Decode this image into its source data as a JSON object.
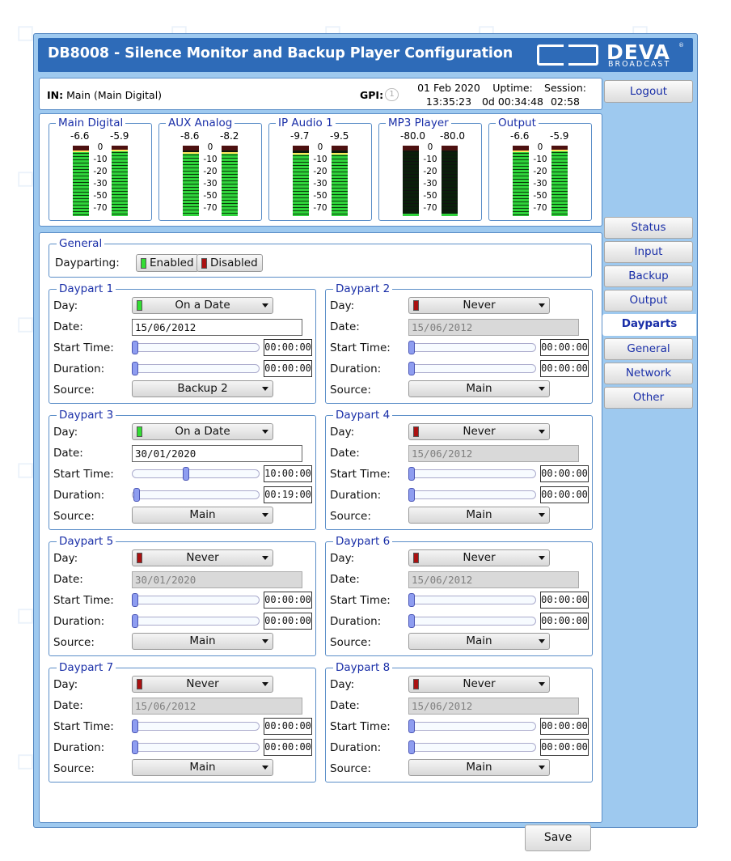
{
  "header": {
    "title": "DB8008 - Silence Monitor and Backup Player Configuration",
    "logo_text": "DEVA",
    "logo_sub": "BROADCAST",
    "logo_reg": "®"
  },
  "info": {
    "in_label": "IN:",
    "in_value": "Main (Main Digital)",
    "gpi_label": "GPI:",
    "gpi_value": "1",
    "date": "01 Feb 2020",
    "time": "13:35:23",
    "uptime_label": "Uptime:",
    "uptime_value": "0d 00:34:48",
    "session_label": "Session:",
    "session_value": "02:58"
  },
  "nav": {
    "logout": "Logout",
    "items": [
      "Status",
      "Input",
      "Backup",
      "Output",
      "Dayparts",
      "General",
      "Network",
      "Other"
    ],
    "active": "Dayparts"
  },
  "meters": {
    "scale": [
      "0",
      "-10",
      "-20",
      "-30",
      "-50",
      "-70"
    ],
    "items": [
      {
        "name": "Main Digital",
        "left": "-6.6",
        "right": "-5.9",
        "left_level": 0.93,
        "right_level": 0.94
      },
      {
        "name": "AUX Analog",
        "left": "-8.6",
        "right": "-8.2",
        "left_level": 0.91,
        "right_level": 0.91
      },
      {
        "name": "IP Audio 1",
        "left": "-9.7",
        "right": "-9.5",
        "left_level": 0.9,
        "right_level": 0.9
      },
      {
        "name": "MP3 Player",
        "left": "-80.0",
        "right": "-80.0",
        "left_level": 0.03,
        "right_level": 0.03
      },
      {
        "name": "Output",
        "left": "-6.6",
        "right": "-5.9",
        "left_level": 0.93,
        "right_level": 0.94
      }
    ]
  },
  "general": {
    "legend": "General",
    "dayparting_label": "Dayparting:",
    "enabled_label": "Enabled",
    "disabled_label": "Disabled",
    "enabled_color": "#33dd33",
    "disabled_color": "#aa1111"
  },
  "labels": {
    "day": "Day:",
    "date": "Date:",
    "start": "Start Time:",
    "duration": "Duration:",
    "source": "Source:"
  },
  "dayparts": [
    {
      "legend": "Daypart 1",
      "day": "On a Date",
      "day_color": "#33dd33",
      "date": "15/06/2012",
      "date_enabled": true,
      "start": "00:00:00",
      "start_level": 0.0,
      "duration": "00:00:00",
      "duration_level": 0.0,
      "source": "Backup 2"
    },
    {
      "legend": "Daypart 2",
      "day": "Never",
      "day_color": "#aa1111",
      "date": "15/06/2012",
      "date_enabled": false,
      "start": "00:00:00",
      "start_level": 0.0,
      "duration": "00:00:00",
      "duration_level": 0.0,
      "source": "Main"
    },
    {
      "legend": "Daypart 3",
      "day": "On a Date",
      "day_color": "#33dd33",
      "date": "30/01/2020",
      "date_enabled": true,
      "start": "10:00:00",
      "start_level": 0.42,
      "duration": "00:19:00",
      "duration_level": 0.01,
      "source": "Main"
    },
    {
      "legend": "Daypart 4",
      "day": "Never",
      "day_color": "#aa1111",
      "date": "15/06/2012",
      "date_enabled": false,
      "start": "00:00:00",
      "start_level": 0.0,
      "duration": "00:00:00",
      "duration_level": 0.0,
      "source": "Main"
    },
    {
      "legend": "Daypart 5",
      "day": "Never",
      "day_color": "#aa1111",
      "date": "30/01/2020",
      "date_enabled": false,
      "start": "00:00:00",
      "start_level": 0.0,
      "duration": "00:00:00",
      "duration_level": 0.0,
      "source": "Main"
    },
    {
      "legend": "Daypart 6",
      "day": "Never",
      "day_color": "#aa1111",
      "date": "15/06/2012",
      "date_enabled": false,
      "start": "00:00:00",
      "start_level": 0.0,
      "duration": "00:00:00",
      "duration_level": 0.0,
      "source": "Main"
    },
    {
      "legend": "Daypart 7",
      "day": "Never",
      "day_color": "#aa1111",
      "date": "15/06/2012",
      "date_enabled": false,
      "start": "00:00:00",
      "start_level": 0.0,
      "duration": "00:00:00",
      "duration_level": 0.0,
      "source": "Main"
    },
    {
      "legend": "Daypart 8",
      "day": "Never",
      "day_color": "#aa1111",
      "date": "15/06/2012",
      "date_enabled": false,
      "start": "00:00:00",
      "start_level": 0.0,
      "duration": "00:00:00",
      "duration_level": 0.0,
      "source": "Main"
    }
  ],
  "save_label": "Save"
}
